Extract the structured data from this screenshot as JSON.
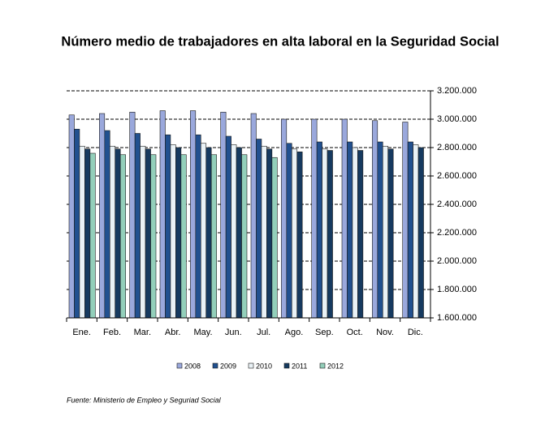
{
  "chart_data": {
    "type": "bar",
    "title": "Número medio de trabajadores en alta laboral en la Seguridad Social",
    "source": "Fuente: Ministerio de Empleo y Seguriad Social",
    "categories": [
      "Ene.",
      "Feb.",
      "Mar.",
      "Abr.",
      "May.",
      "Jun.",
      "Jul.",
      "Ago.",
      "Sep.",
      "Oct.",
      "Nov.",
      "Dic."
    ],
    "series": [
      {
        "name": "2008",
        "color": "#9aa8dc",
        "values": [
          3030000,
          3040000,
          3050000,
          3060000,
          3060000,
          3050000,
          3040000,
          3000000,
          3000000,
          3000000,
          2990000,
          2980000
        ]
      },
      {
        "name": "2009",
        "color": "#21508f",
        "values": [
          2930000,
          2920000,
          2900000,
          2890000,
          2890000,
          2880000,
          2860000,
          2830000,
          2840000,
          2840000,
          2840000,
          2840000
        ]
      },
      {
        "name": "2010",
        "color": "#eaf2f6",
        "values": [
          2810000,
          2810000,
          2810000,
          2820000,
          2830000,
          2820000,
          2810000,
          2790000,
          2790000,
          2800000,
          2810000,
          2820000
        ]
      },
      {
        "name": "2011",
        "color": "#163a60",
        "values": [
          2790000,
          2790000,
          2790000,
          2800000,
          2800000,
          2800000,
          2790000,
          2770000,
          2780000,
          2780000,
          2790000,
          2800000
        ]
      },
      {
        "name": "2012",
        "color": "#93cfba",
        "values": [
          2760000,
          2750000,
          2750000,
          2750000,
          2750000,
          2750000,
          2730000,
          null,
          null,
          null,
          null,
          null
        ]
      }
    ],
    "ylim": [
      1600000,
      3200000
    ],
    "yticks": [
      {
        "value": 1600000,
        "label": "1.600.000"
      },
      {
        "value": 1800000,
        "label": "1.800.000"
      },
      {
        "value": 2000000,
        "label": "2.000.000"
      },
      {
        "value": 2200000,
        "label": "2.200.000"
      },
      {
        "value": 2400000,
        "label": "2.400.000"
      },
      {
        "value": 2600000,
        "label": "2.600.000"
      },
      {
        "value": 2800000,
        "label": "2.800.000"
      },
      {
        "value": 3000000,
        "label": "3.000.000"
      },
      {
        "value": 3200000,
        "label": "3.200.000"
      }
    ],
    "grid": true,
    "legend": "bottom"
  }
}
